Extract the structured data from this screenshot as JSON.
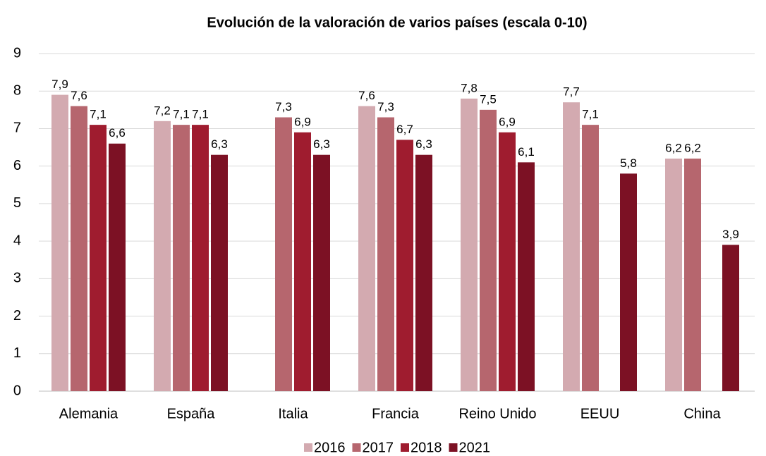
{
  "chart_data": {
    "type": "bar",
    "title": "Evolución de la valoración de varios países (escala 0-10)",
    "categories": [
      "Alemania",
      "España",
      "Italia",
      "Francia",
      "Reino Unido",
      "EEUU",
      "China"
    ],
    "series": [
      {
        "name": "2016",
        "color": "#d3aab0",
        "values": [
          7.9,
          7.2,
          null,
          7.6,
          7.8,
          7.7,
          6.2
        ],
        "value_labels": [
          "7,9",
          "7,2",
          null,
          "7,6",
          "7,8",
          "7,7",
          "6,2"
        ]
      },
      {
        "name": "2017",
        "color": "#b6666e",
        "values": [
          7.6,
          7.1,
          7.3,
          7.3,
          7.5,
          7.1,
          6.2
        ],
        "value_labels": [
          "7,6",
          "7,1",
          "7,3",
          "7,3",
          "7,5",
          "7,1",
          "6,2"
        ]
      },
      {
        "name": "2018",
        "color": "#9f1c2f",
        "values": [
          7.1,
          7.1,
          6.9,
          6.7,
          6.9,
          null,
          null
        ],
        "value_labels": [
          "7,1",
          "7,1",
          "6,9",
          "6,7",
          "6,9",
          null,
          null
        ]
      },
      {
        "name": "2021",
        "color": "#7c1124",
        "values": [
          6.6,
          6.3,
          6.3,
          6.3,
          6.1,
          5.8,
          3.9
        ],
        "value_labels": [
          "6,6",
          "6,3",
          "6,3",
          "6,3",
          "6,1",
          "5,8",
          "3,9"
        ]
      }
    ],
    "ylim": [
      0,
      9
    ],
    "yticks": [
      0,
      1,
      2,
      3,
      4,
      5,
      6,
      7,
      8,
      9
    ],
    "grid": true,
    "legend": "bottom"
  }
}
